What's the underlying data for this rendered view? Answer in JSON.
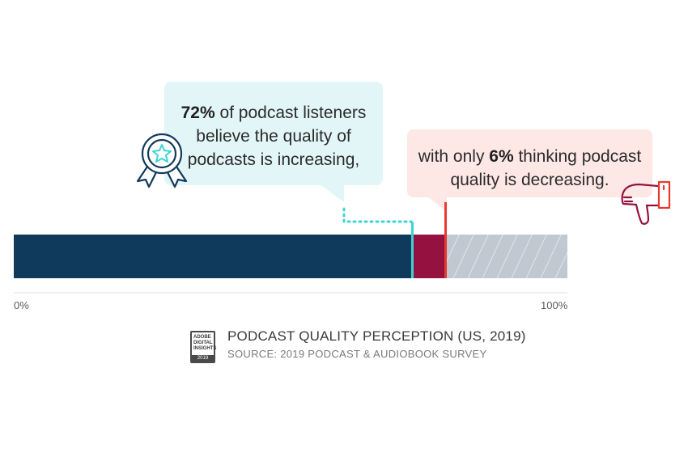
{
  "callouts": {
    "increasing": {
      "bold": "72%",
      "text": " of podcast listeners believe the quality of podcasts is increasing,"
    },
    "decreasing": {
      "prefix": "with only ",
      "bold": "6%",
      "suffix": " thinking podcast quality is decreasing."
    }
  },
  "icons": {
    "left": "award-ribbon-icon",
    "right": "thumbs-down-icon"
  },
  "footer": {
    "logo_lines": [
      "ADOBE",
      "DIGITAL",
      "INSIGHTS"
    ],
    "logo_year": "2019",
    "title": "PODCAST QUALITY PERCEPTION (US, 2019)",
    "source": "SOURCE: 2019 PODCAST & AUDIOBOOK SURVEY"
  },
  "chart_data": {
    "type": "bar",
    "orientation": "horizontal",
    "stacked": true,
    "xlim": [
      0,
      100
    ],
    "tick_labels": [
      "0%",
      "100%"
    ],
    "series": [
      {
        "value": 72,
        "color": "#0f3a5c"
      },
      {
        "value": 6,
        "color": "#951240"
      },
      {
        "value": 22,
        "color": "#c0c9d1",
        "pattern": "hatch"
      }
    ],
    "markers": [
      {
        "at": 72,
        "color": "#3ed4d4"
      },
      {
        "at": 78,
        "color": "#e8392f"
      }
    ],
    "colors": {
      "teal": "#3ed4d4",
      "red": "#e8392f",
      "navy": "#0f3a5c"
    }
  }
}
